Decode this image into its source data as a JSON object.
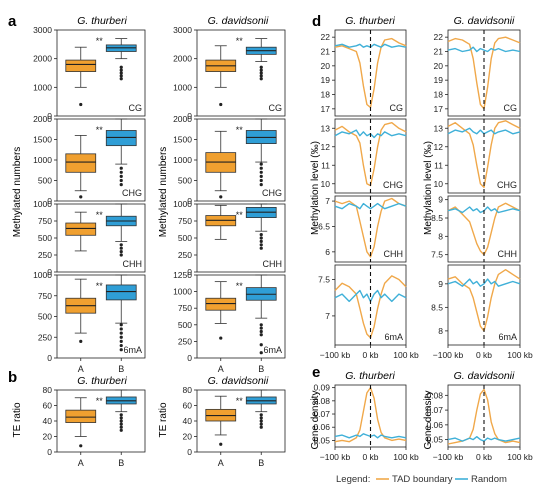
{
  "colors": {
    "A": "#f0a030",
    "B": "#2f9ed6",
    "tad": "#f0a84a",
    "random": "#3fb0d8"
  },
  "panel_letters": {
    "a": "a",
    "b": "b",
    "d": "d",
    "e": "e"
  },
  "species": {
    "thurberi": "G. thurberi",
    "davidsonii": "G. davidsonii"
  },
  "axis_labels": {
    "methylated": "Methylated numbers",
    "te_ratio": "TE ratio",
    "methylation_level": "Methylation level (‰)",
    "gene_density": "Gene density"
  },
  "x_ticks_box": [
    "A",
    "B"
  ],
  "x_ticks_profile": [
    "−100 kb",
    "0 kb",
    "100 kb"
  ],
  "legend": {
    "title": "Legend:",
    "tad": "TAD boundary",
    "random": "Random"
  },
  "chart_data": [
    {
      "id": "a-thu-CG",
      "type": "box",
      "tag": "CG",
      "sig": "**",
      "ylim": [
        0,
        3000
      ],
      "yticks": [
        0,
        1000,
        2000,
        3000
      ],
      "boxes": [
        {
          "cat": "A",
          "q1": 1550,
          "med": 1800,
          "q3": 1950,
          "wlo": 1000,
          "whi": 2400,
          "out": [
            400
          ]
        },
        {
          "cat": "B",
          "q1": 2250,
          "med": 2380,
          "q3": 2480,
          "wlo": 2000,
          "whi": 2700,
          "out": [
            1700,
            1600,
            1500,
            1400,
            1300
          ]
        }
      ]
    },
    {
      "id": "a-thu-CHG",
      "type": "box",
      "tag": "CHG",
      "sig": "**",
      "ylim": [
        0,
        2000
      ],
      "yticks": [
        0,
        500,
        1000,
        1500,
        2000
      ],
      "boxes": [
        {
          "cat": "A",
          "q1": 700,
          "med": 950,
          "q3": 1150,
          "wlo": 250,
          "whi": 1600,
          "out": [
            100
          ]
        },
        {
          "cat": "B",
          "q1": 1350,
          "med": 1550,
          "q3": 1720,
          "wlo": 900,
          "whi": 2000,
          "out": [
            800,
            700,
            600,
            500,
            400
          ]
        }
      ]
    },
    {
      "id": "a-thu-CHH",
      "type": "box",
      "tag": "CHH",
      "sig": "**",
      "ylim": [
        0,
        1000
      ],
      "yticks": [
        0,
        250,
        500,
        750,
        1000
      ],
      "boxes": [
        {
          "cat": "A",
          "q1": 540,
          "med": 640,
          "q3": 720,
          "wlo": 310,
          "whi": 880,
          "out": []
        },
        {
          "cat": "B",
          "q1": 680,
          "med": 750,
          "q3": 820,
          "wlo": 450,
          "whi": 1000,
          "out": [
            400,
            350,
            300,
            250
          ]
        }
      ]
    },
    {
      "id": "a-thu-6mA",
      "type": "box",
      "tag": "6mA",
      "sig": "**",
      "ylim": [
        0,
        1000
      ],
      "yticks": [
        0,
        250,
        500,
        750,
        1000
      ],
      "boxes": [
        {
          "cat": "A",
          "q1": 540,
          "med": 630,
          "q3": 720,
          "wlo": 300,
          "whi": 950,
          "out": [
            200
          ]
        },
        {
          "cat": "B",
          "q1": 700,
          "med": 800,
          "q3": 880,
          "wlo": 420,
          "whi": 1000,
          "out": [
            400,
            350,
            300,
            250,
            200,
            150,
            100
          ]
        }
      ]
    },
    {
      "id": "a-dav-CG",
      "type": "box",
      "tag": "CG",
      "sig": "**",
      "ylim": [
        0,
        3000
      ],
      "yticks": [
        0,
        1000,
        2000,
        3000
      ],
      "boxes": [
        {
          "cat": "A",
          "q1": 1550,
          "med": 1750,
          "q3": 1950,
          "wlo": 1000,
          "whi": 2450,
          "out": [
            400
          ]
        },
        {
          "cat": "B",
          "q1": 2150,
          "med": 2280,
          "q3": 2400,
          "wlo": 1900,
          "whi": 2700,
          "out": [
            1700,
            1600,
            1500,
            1400,
            1300
          ]
        }
      ]
    },
    {
      "id": "a-dav-CHG",
      "type": "box",
      "tag": "CHG",
      "sig": "**",
      "ylim": [
        0,
        2000
      ],
      "yticks": [
        0,
        500,
        1000,
        1500,
        2000
      ],
      "boxes": [
        {
          "cat": "A",
          "q1": 700,
          "med": 950,
          "q3": 1180,
          "wlo": 250,
          "whi": 1700,
          "out": [
            100
          ]
        },
        {
          "cat": "B",
          "q1": 1400,
          "med": 1550,
          "q3": 1720,
          "wlo": 950,
          "whi": 2000,
          "out": [
            900,
            800,
            700,
            600,
            500,
            400
          ]
        }
      ]
    },
    {
      "id": "a-dav-CHH",
      "type": "box",
      "tag": "CHH",
      "sig": "**",
      "ylim": [
        0,
        1000
      ],
      "yticks": [
        0,
        250,
        500,
        750,
        1000
      ],
      "boxes": [
        {
          "cat": "A",
          "q1": 680,
          "med": 760,
          "q3": 830,
          "wlo": 480,
          "whi": 980,
          "out": []
        },
        {
          "cat": "B",
          "q1": 800,
          "med": 880,
          "q3": 950,
          "wlo": 600,
          "whi": 1000,
          "out": [
            550,
            500,
            450,
            400,
            350
          ]
        }
      ]
    },
    {
      "id": "a-dav-6mA",
      "type": "box",
      "tag": "6mA",
      "sig": "**",
      "ylim": [
        0,
        1250
      ],
      "yticks": [
        0,
        250,
        500,
        750,
        1000,
        1250
      ],
      "boxes": [
        {
          "cat": "A",
          "q1": 720,
          "med": 820,
          "q3": 900,
          "wlo": 520,
          "whi": 1150,
          "out": [
            300
          ]
        },
        {
          "cat": "B",
          "q1": 870,
          "med": 960,
          "q3": 1060,
          "wlo": 600,
          "whi": 1250,
          "out": [
            500,
            450,
            400,
            350,
            200,
            80
          ]
        }
      ]
    },
    {
      "id": "b-thu",
      "type": "box",
      "sig": "**",
      "ylim": [
        0,
        80
      ],
      "yticks": [
        0,
        20,
        40,
        60,
        80
      ],
      "boxes": [
        {
          "cat": "A",
          "q1": 38,
          "med": 45,
          "q3": 54,
          "wlo": 20,
          "whi": 70,
          "out": [
            8
          ]
        },
        {
          "cat": "B",
          "q1": 62,
          "med": 66,
          "q3": 71,
          "wlo": 52,
          "whi": 80,
          "out": [
            48,
            44,
            40,
            36,
            32,
            28
          ]
        }
      ]
    },
    {
      "id": "b-dav",
      "type": "box",
      "sig": "**",
      "ylim": [
        0,
        80
      ],
      "yticks": [
        0,
        20,
        40,
        60,
        80
      ],
      "boxes": [
        {
          "cat": "A",
          "q1": 40,
          "med": 47,
          "q3": 55,
          "wlo": 22,
          "whi": 72,
          "out": [
            10
          ]
        },
        {
          "cat": "B",
          "q1": 62,
          "med": 66,
          "q3": 71,
          "wlo": 52,
          "whi": 80,
          "out": [
            48,
            44,
            40,
            36,
            32
          ]
        }
      ]
    },
    {
      "id": "d-thu-CG",
      "type": "line",
      "tag": "CG",
      "ylim": [
        16.5,
        22.5
      ],
      "yticks": [
        17,
        18,
        19,
        20,
        21,
        22
      ],
      "x": [
        -100,
        -80,
        -60,
        -40,
        -30,
        -20,
        -10,
        0,
        10,
        20,
        30,
        40,
        60,
        80,
        100
      ],
      "series": [
        {
          "key": "tad",
          "values": [
            21.3,
            21.4,
            21.2,
            21.0,
            20.2,
            18.6,
            17.3,
            17.1,
            18.4,
            20.2,
            21.3,
            21.8,
            21.9,
            21.6,
            21.4
          ]
        },
        {
          "key": "random",
          "values": [
            21.4,
            21.5,
            21.3,
            21.4,
            21.5,
            21.3,
            21.4,
            21.3,
            21.5,
            21.4,
            21.3,
            21.5,
            21.3,
            21.4,
            21.3
          ]
        }
      ]
    },
    {
      "id": "d-thu-CHG",
      "type": "line",
      "tag": "CHG",
      "ylim": [
        9.5,
        13.5
      ],
      "yticks": [
        10,
        11,
        12,
        13
      ],
      "x": [
        -100,
        -80,
        -60,
        -40,
        -30,
        -20,
        -10,
        0,
        10,
        20,
        30,
        40,
        60,
        80,
        100
      ],
      "series": [
        {
          "key": "tad",
          "values": [
            12.9,
            13.1,
            12.8,
            12.6,
            12.2,
            11.0,
            10.0,
            9.9,
            10.8,
            12.0,
            12.9,
            13.2,
            13.3,
            13.0,
            12.8
          ]
        },
        {
          "key": "random",
          "values": [
            12.6,
            12.8,
            12.7,
            12.9,
            12.6,
            12.8,
            12.6,
            12.7,
            12.5,
            12.7,
            12.6,
            12.8,
            12.6,
            12.7,
            12.6
          ]
        }
      ]
    },
    {
      "id": "d-thu-CHH",
      "type": "line",
      "tag": "CHH",
      "ylim": [
        5.8,
        7.1
      ],
      "yticks": [
        6.0,
        6.5,
        7.0
      ],
      "x": [
        -100,
        -80,
        -60,
        -40,
        -30,
        -20,
        -10,
        0,
        10,
        20,
        30,
        40,
        60,
        80,
        100
      ],
      "series": [
        {
          "key": "tad",
          "values": [
            7.0,
            6.95,
            7.0,
            6.9,
            6.6,
            6.3,
            6.0,
            5.9,
            6.1,
            6.5,
            6.8,
            7.0,
            7.05,
            6.95,
            6.9
          ]
        },
        {
          "key": "random",
          "values": [
            6.9,
            6.85,
            6.95,
            6.9,
            6.85,
            6.95,
            6.9,
            6.85,
            6.9,
            6.95,
            6.9,
            6.85,
            6.9,
            6.95,
            6.9
          ]
        }
      ]
    },
    {
      "id": "d-thu-6mA",
      "type": "line",
      "tag": "6mA",
      "ylim": [
        6.6,
        7.7
      ],
      "yticks": [
        7.0,
        7.5
      ],
      "x": [
        -100,
        -80,
        -60,
        -40,
        -30,
        -20,
        -10,
        0,
        10,
        20,
        30,
        40,
        60,
        80,
        100
      ],
      "series": [
        {
          "key": "tad",
          "values": [
            7.35,
            7.45,
            7.4,
            7.3,
            7.1,
            6.9,
            6.75,
            6.7,
            6.85,
            7.1,
            7.3,
            7.45,
            7.55,
            7.5,
            7.4
          ]
        },
        {
          "key": "random",
          "values": [
            7.25,
            7.3,
            7.2,
            7.3,
            7.35,
            7.25,
            7.3,
            7.2,
            7.3,
            7.35,
            7.25,
            7.3,
            7.2,
            7.3,
            7.25
          ]
        }
      ]
    },
    {
      "id": "d-dav-CG",
      "type": "line",
      "tag": "CG",
      "ylim": [
        16.5,
        22.5
      ],
      "yticks": [
        17,
        18,
        19,
        20,
        21,
        22
      ],
      "x": [
        -100,
        -80,
        -60,
        -40,
        -30,
        -20,
        -10,
        0,
        10,
        20,
        30,
        40,
        60,
        80,
        100
      ],
      "series": [
        {
          "key": "tad",
          "values": [
            21.7,
            21.9,
            21.8,
            21.5,
            20.5,
            18.8,
            17.3,
            17.0,
            18.5,
            20.5,
            21.6,
            21.9,
            22.0,
            21.8,
            21.6
          ]
        },
        {
          "key": "random",
          "values": [
            21.1,
            21.2,
            21.0,
            21.1,
            21.3,
            21.0,
            21.2,
            21.1,
            21.0,
            21.2,
            21.1,
            21.2,
            21.0,
            21.1,
            21.0
          ]
        }
      ]
    },
    {
      "id": "d-dav-CHG",
      "type": "line",
      "tag": "CHG",
      "ylim": [
        9.5,
        13.5
      ],
      "yticks": [
        10,
        11,
        12,
        13
      ],
      "x": [
        -100,
        -80,
        -60,
        -40,
        -30,
        -20,
        -10,
        0,
        10,
        20,
        30,
        40,
        60,
        80,
        100
      ],
      "series": [
        {
          "key": "tad",
          "values": [
            13.1,
            13.3,
            13.0,
            12.7,
            12.1,
            11.0,
            10.0,
            9.8,
            10.9,
            12.1,
            13.0,
            13.3,
            13.4,
            13.2,
            13.0
          ]
        },
        {
          "key": "random",
          "values": [
            12.7,
            12.9,
            12.8,
            13.0,
            12.8,
            12.7,
            12.9,
            12.7,
            12.8,
            12.9,
            12.7,
            12.8,
            12.9,
            12.7,
            12.8
          ]
        }
      ]
    },
    {
      "id": "d-dav-CHH",
      "type": "line",
      "tag": "CHH",
      "ylim": [
        7.3,
        9.1
      ],
      "yticks": [
        7.5,
        8.0,
        8.5,
        9.0
      ],
      "x": [
        -100,
        -80,
        -60,
        -40,
        -30,
        -20,
        -10,
        0,
        10,
        20,
        30,
        40,
        60,
        80,
        100
      ],
      "series": [
        {
          "key": "tad",
          "values": [
            8.7,
            8.8,
            8.6,
            8.4,
            8.1,
            7.8,
            7.6,
            7.5,
            7.7,
            8.1,
            8.5,
            8.8,
            8.9,
            8.8,
            8.7
          ]
        },
        {
          "key": "random",
          "values": [
            8.7,
            8.75,
            8.65,
            8.8,
            8.7,
            8.75,
            8.65,
            8.7,
            8.8,
            8.7,
            8.75,
            8.65,
            8.7,
            8.75,
            8.7
          ]
        }
      ]
    },
    {
      "id": "d-dav-6mA",
      "type": "line",
      "tag": "6mA",
      "ylim": [
        7.7,
        9.4
      ],
      "yticks": [
        8.0,
        8.5,
        9.0
      ],
      "x": [
        -100,
        -80,
        -60,
        -40,
        -30,
        -20,
        -10,
        0,
        10,
        20,
        30,
        40,
        60,
        80,
        100
      ],
      "series": [
        {
          "key": "tad",
          "values": [
            9.1,
            9.15,
            9.0,
            8.9,
            8.7,
            8.4,
            8.1,
            8.0,
            8.3,
            8.7,
            9.0,
            9.2,
            9.3,
            9.2,
            9.1
          ]
        },
        {
          "key": "random",
          "values": [
            9.0,
            9.05,
            8.95,
            9.1,
            9.0,
            9.05,
            8.95,
            9.0,
            9.1,
            9.0,
            9.05,
            8.95,
            9.0,
            9.05,
            9.0
          ]
        }
      ]
    },
    {
      "id": "e-thu",
      "type": "line",
      "ylim": [
        0.045,
        0.092
      ],
      "yticks": [
        0.05,
        0.06,
        0.07,
        0.08,
        0.09
      ],
      "x": [
        -100,
        -80,
        -60,
        -40,
        -30,
        -20,
        -10,
        0,
        10,
        20,
        30,
        40,
        60,
        80,
        100
      ],
      "series": [
        {
          "key": "tad",
          "values": [
            0.049,
            0.05,
            0.049,
            0.052,
            0.058,
            0.072,
            0.086,
            0.09,
            0.082,
            0.066,
            0.056,
            0.052,
            0.05,
            0.051,
            0.05
          ]
        },
        {
          "key": "random",
          "values": [
            0.053,
            0.054,
            0.052,
            0.054,
            0.053,
            0.055,
            0.054,
            0.053,
            0.054,
            0.052,
            0.054,
            0.053,
            0.052,
            0.053,
            0.052
          ]
        }
      ]
    },
    {
      "id": "e-dav",
      "type": "line",
      "ylim": [
        0.045,
        0.087
      ],
      "yticks": [
        0.05,
        0.06,
        0.07,
        0.08
      ],
      "x": [
        -100,
        -80,
        -60,
        -40,
        -30,
        -20,
        -10,
        0,
        10,
        20,
        30,
        40,
        60,
        80,
        100
      ],
      "series": [
        {
          "key": "tad",
          "values": [
            0.047,
            0.048,
            0.049,
            0.051,
            0.057,
            0.07,
            0.081,
            0.084,
            0.077,
            0.062,
            0.054,
            0.05,
            0.048,
            0.049,
            0.048
          ]
        },
        {
          "key": "random",
          "values": [
            0.05,
            0.051,
            0.049,
            0.051,
            0.05,
            0.052,
            0.05,
            0.049,
            0.051,
            0.05,
            0.051,
            0.05,
            0.049,
            0.05,
            0.051
          ]
        }
      ]
    }
  ]
}
